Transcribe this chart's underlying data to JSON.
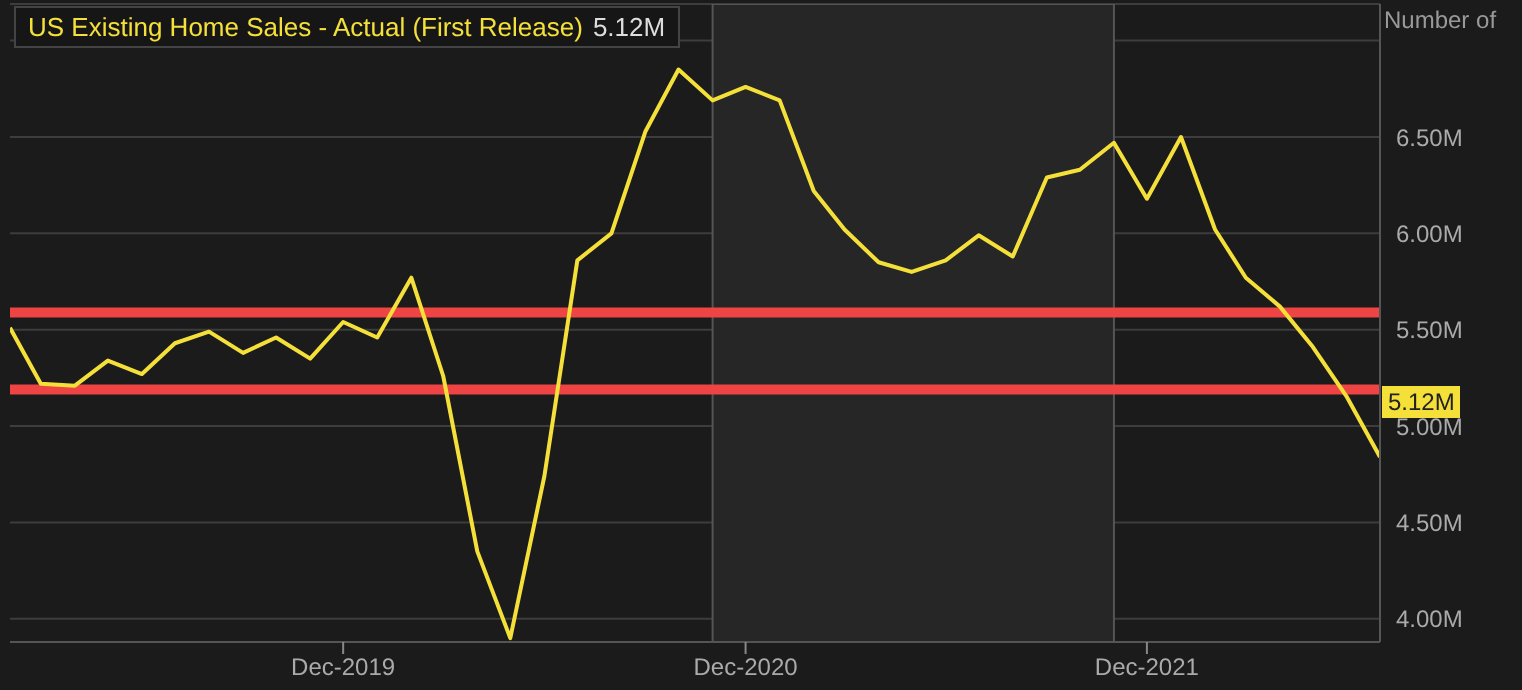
{
  "chart_data": {
    "type": "line",
    "ylabel": "Number of",
    "x": [
      "2019-02",
      "2019-03",
      "2019-04",
      "2019-05",
      "2019-06",
      "2019-07",
      "2019-08",
      "2019-09",
      "2019-10",
      "2019-11",
      "2019-12",
      "2020-01",
      "2020-02",
      "2020-03",
      "2020-04",
      "2020-05",
      "2020-06",
      "2020-07",
      "2020-08",
      "2020-09",
      "2020-10",
      "2020-11",
      "2020-12",
      "2021-01",
      "2021-02",
      "2021-03",
      "2021-04",
      "2021-05",
      "2021-06",
      "2021-07",
      "2021-08",
      "2021-09",
      "2021-10",
      "2021-11",
      "2021-12",
      "2022-01",
      "2022-02",
      "2022-03",
      "2022-04",
      "2022-05",
      "2022-06",
      "2022-07"
    ],
    "series": [
      {
        "name": "US Existing Home Sales - Actual (First Release)",
        "color": "#f5e03a",
        "values": [
          5.51,
          5.22,
          5.21,
          5.34,
          5.27,
          5.43,
          5.49,
          5.38,
          5.46,
          5.35,
          5.54,
          5.46,
          5.77,
          5.26,
          4.35,
          3.9,
          4.74,
          5.86,
          6.0,
          6.53,
          6.85,
          6.69,
          6.76,
          6.69,
          6.22,
          6.02,
          5.85,
          5.8,
          5.86,
          5.99,
          5.88,
          6.29,
          6.33,
          6.47,
          6.18,
          6.5,
          6.02,
          5.77,
          5.62,
          5.41,
          5.15,
          4.84
        ]
      }
    ],
    "xlim": [
      "2019-02",
      "2022-07"
    ],
    "xticks": [
      {
        "value": "2019-12",
        "label": "Dec-2019"
      },
      {
        "value": "2020-12",
        "label": "Dec-2020"
      },
      {
        "value": "2021-12",
        "label": "Dec-2021"
      }
    ],
    "ylim": [
      3.88,
      7.19
    ],
    "yticks": [
      {
        "value": 4,
        "label": "4.00M"
      },
      {
        "value": 4.5,
        "label": "4.50M"
      },
      {
        "value": 5,
        "label": "5.00M"
      },
      {
        "value": 5.5,
        "label": "5.50M"
      },
      {
        "value": 6,
        "label": "6.00M"
      },
      {
        "value": 6.5,
        "label": "6.50M"
      },
      {
        "value": 7,
        "label": null
      }
    ],
    "ref_lines": [
      {
        "axis": "y",
        "value": 5.59,
        "color": "#ee4444"
      },
      {
        "axis": "y",
        "value": 5.19,
        "color": "#ee4444"
      }
    ],
    "bands": [
      {
        "axis": "x",
        "from": "2020-11",
        "to": "2021-11",
        "color": "#262626"
      }
    ],
    "annotations": [
      "5.12M",
      {
        "text": "5.12M",
        "x": "2022-07",
        "y": 5.12
      }
    ],
    "grid": "y",
    "legend": "top left",
    "marker": "none",
    "line_style": "solid"
  }
}
